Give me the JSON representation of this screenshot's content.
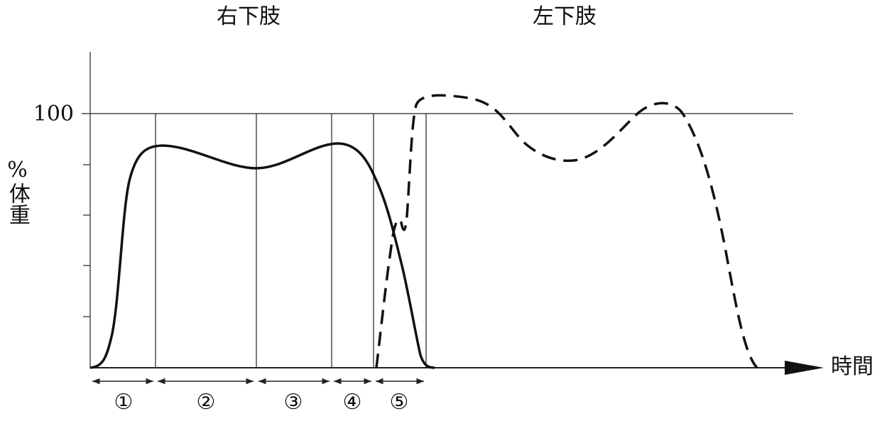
{
  "header": {
    "left_title": "右下肢",
    "right_title": "左下肢"
  },
  "axis": {
    "y_label": "%体重",
    "y_tick": "100",
    "x_label": "時間"
  },
  "phases": [
    "①",
    "②",
    "③",
    "④",
    "⑤"
  ]
}
